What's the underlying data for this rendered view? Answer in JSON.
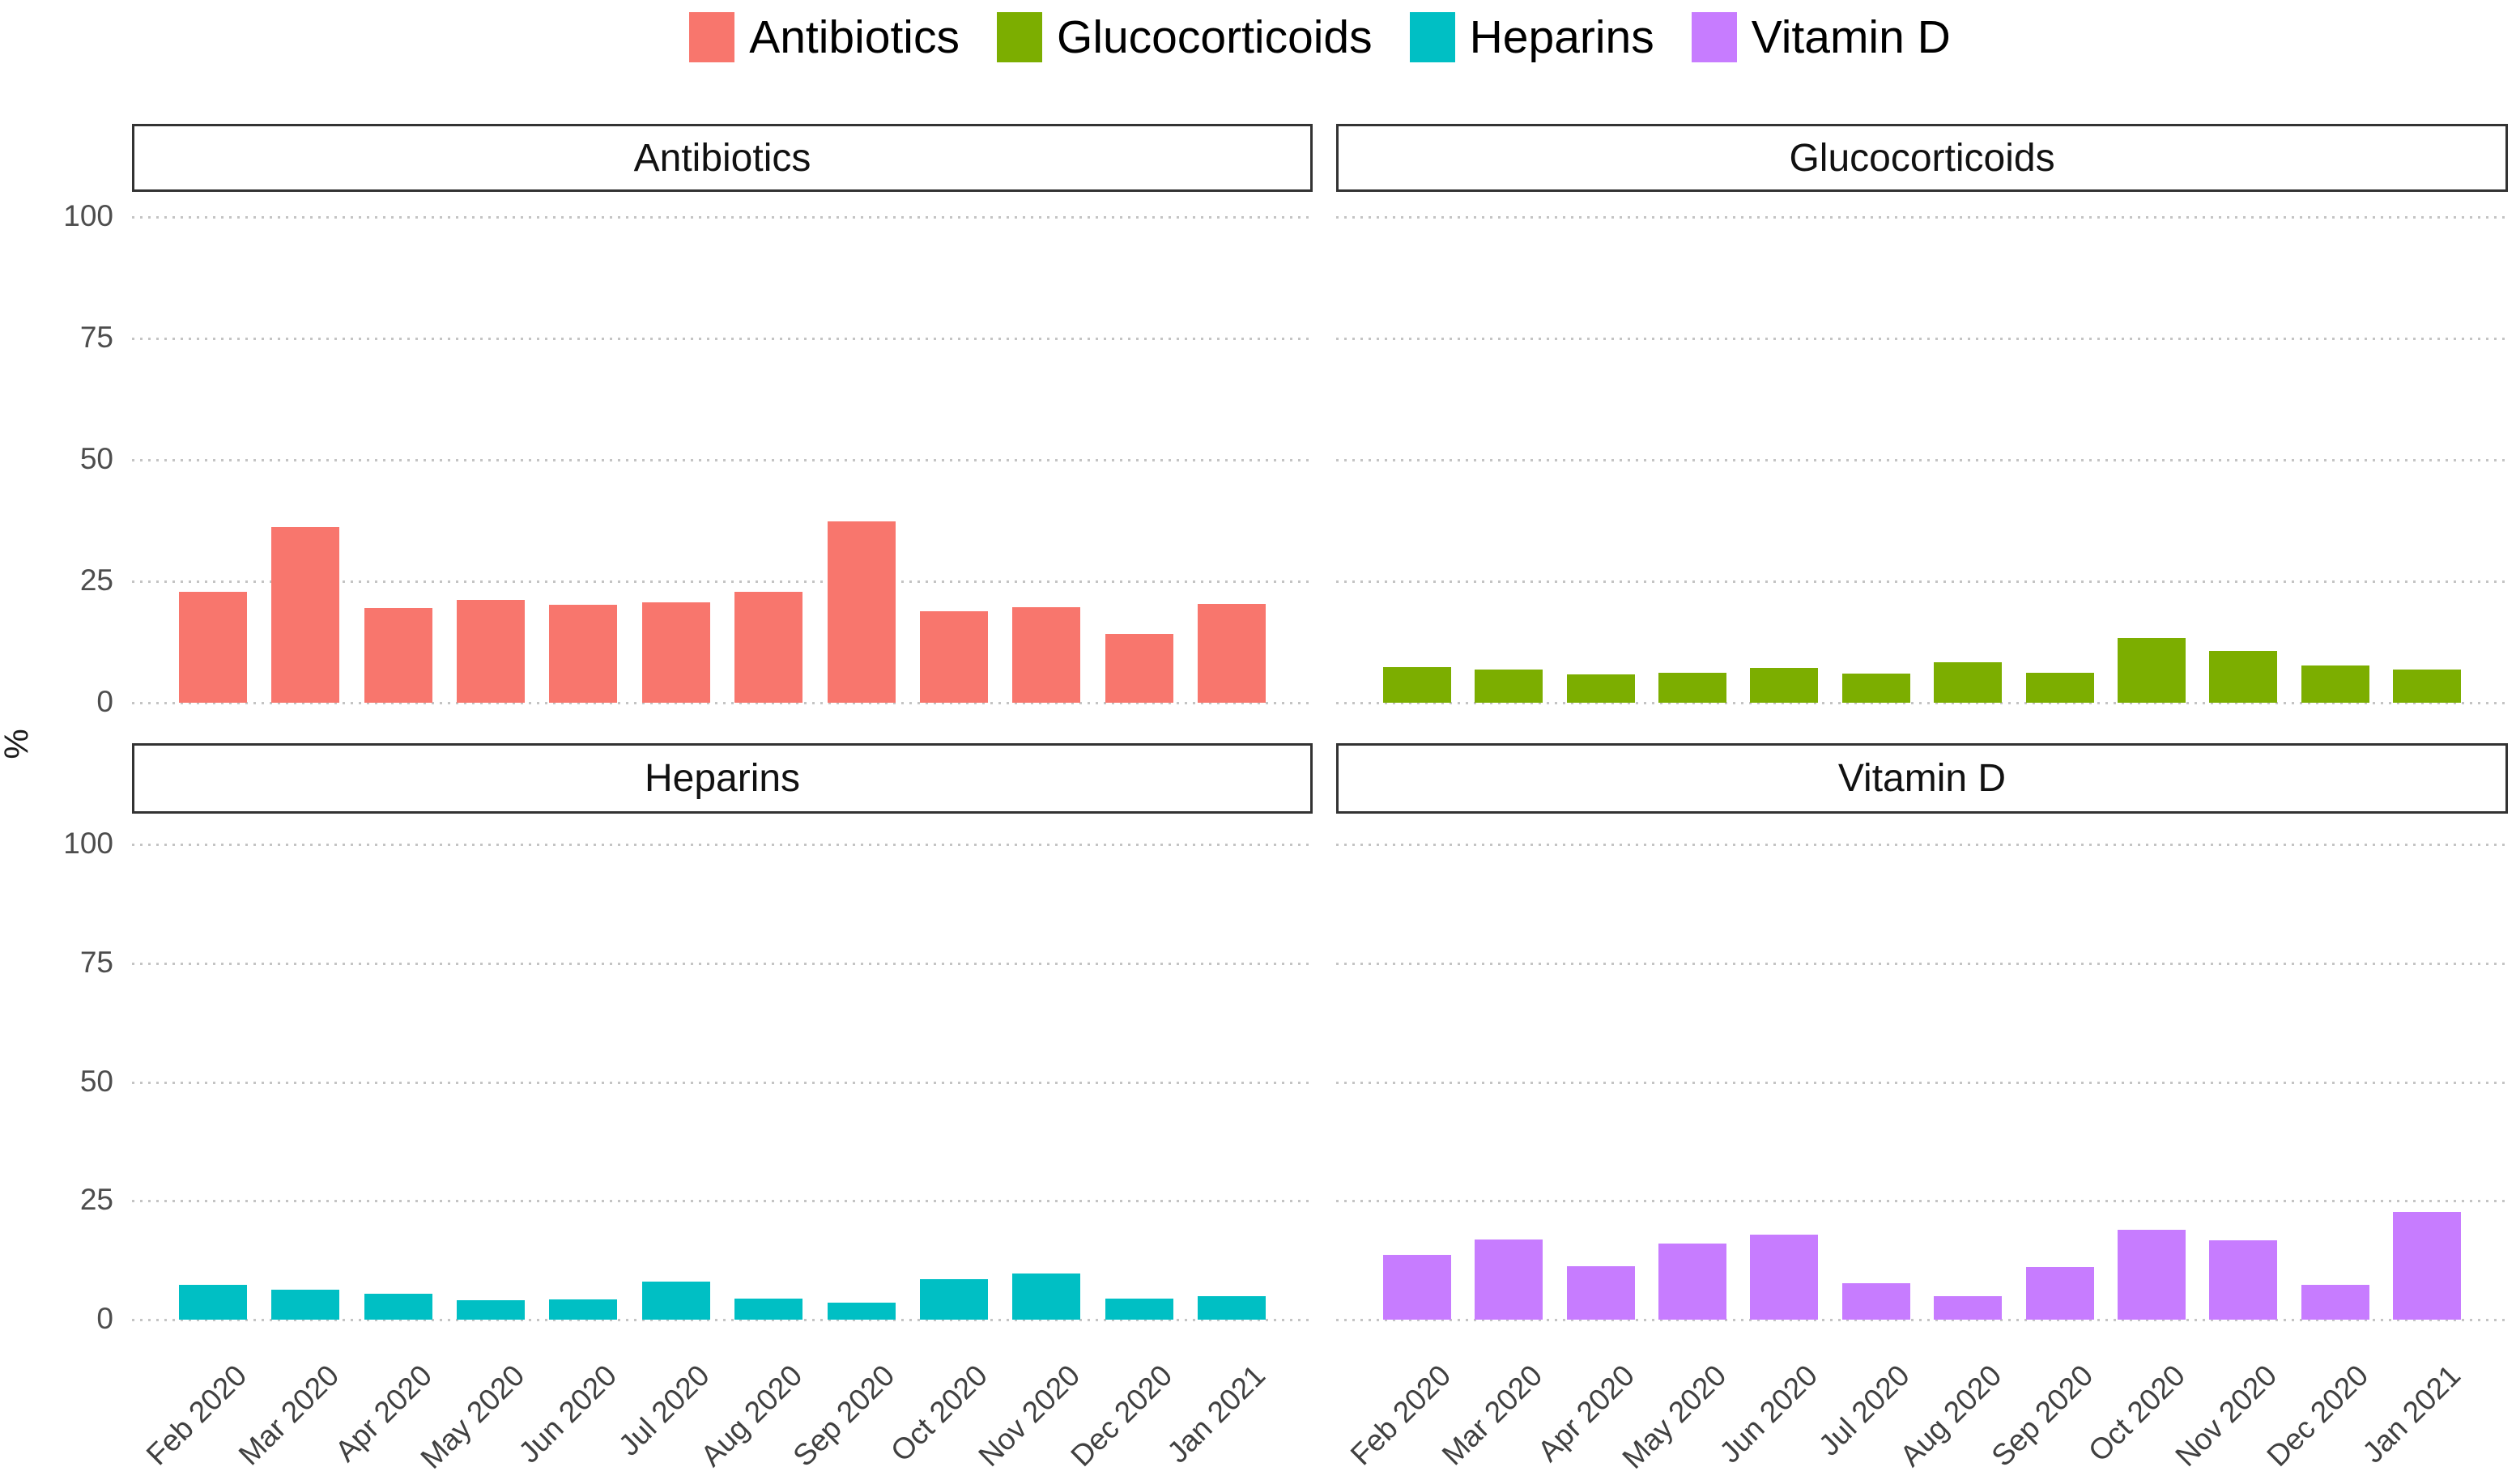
{
  "legend": {
    "items": [
      {
        "label": "Antibiotics",
        "color": "#F8766D"
      },
      {
        "label": "Glucocorticoids",
        "color": "#7CAE00"
      },
      {
        "label": "Heparins",
        "color": "#00BFC4"
      },
      {
        "label": "Vitamin D",
        "color": "#C77CFF"
      }
    ]
  },
  "y_axis": {
    "label": "%",
    "ticks": [
      "0",
      "25",
      "50",
      "75",
      "100"
    ]
  },
  "chart_data": {
    "type": "bar",
    "title": "",
    "ylabel": "%",
    "xlabel": "",
    "ylim": [
      0,
      100
    ],
    "yticks": [
      0,
      25,
      50,
      75,
      100
    ],
    "grid": "dotted horizontal gridlines at each y tick, no vertical grid",
    "legend_position": "top center",
    "categories": [
      "Feb 2020",
      "Mar 2020",
      "Apr 2020",
      "May 2020",
      "Jun 2020",
      "Jul 2020",
      "Aug 2020",
      "Sep 2020",
      "Oct 2020",
      "Nov 2020",
      "Dec 2020",
      "Jan 2021"
    ],
    "facets": [
      {
        "title": "Antibiotics",
        "color": "#F8766D",
        "values": [
          22.9,
          36.1,
          19.5,
          21.2,
          20.2,
          20.6,
          22.8,
          37.3,
          18.8,
          19.7,
          14.1,
          20.3
        ]
      },
      {
        "title": "Glucocorticoids",
        "color": "#7CAE00",
        "values": [
          7.4,
          6.8,
          5.9,
          6.1,
          7.2,
          6.0,
          8.3,
          6.2,
          13.4,
          10.7,
          7.7,
          6.8
        ]
      },
      {
        "title": "Heparins",
        "color": "#00BFC4",
        "values": [
          7.4,
          6.3,
          5.5,
          4.1,
          4.3,
          8.0,
          4.4,
          3.5,
          8.6,
          9.7,
          4.4,
          5.0
        ]
      },
      {
        "title": "Vitamin D",
        "color": "#C77CFF",
        "values": [
          13.7,
          16.9,
          11.2,
          16.0,
          17.9,
          7.6,
          4.9,
          11.0,
          18.9,
          16.7,
          7.3,
          22.6
        ]
      }
    ]
  }
}
